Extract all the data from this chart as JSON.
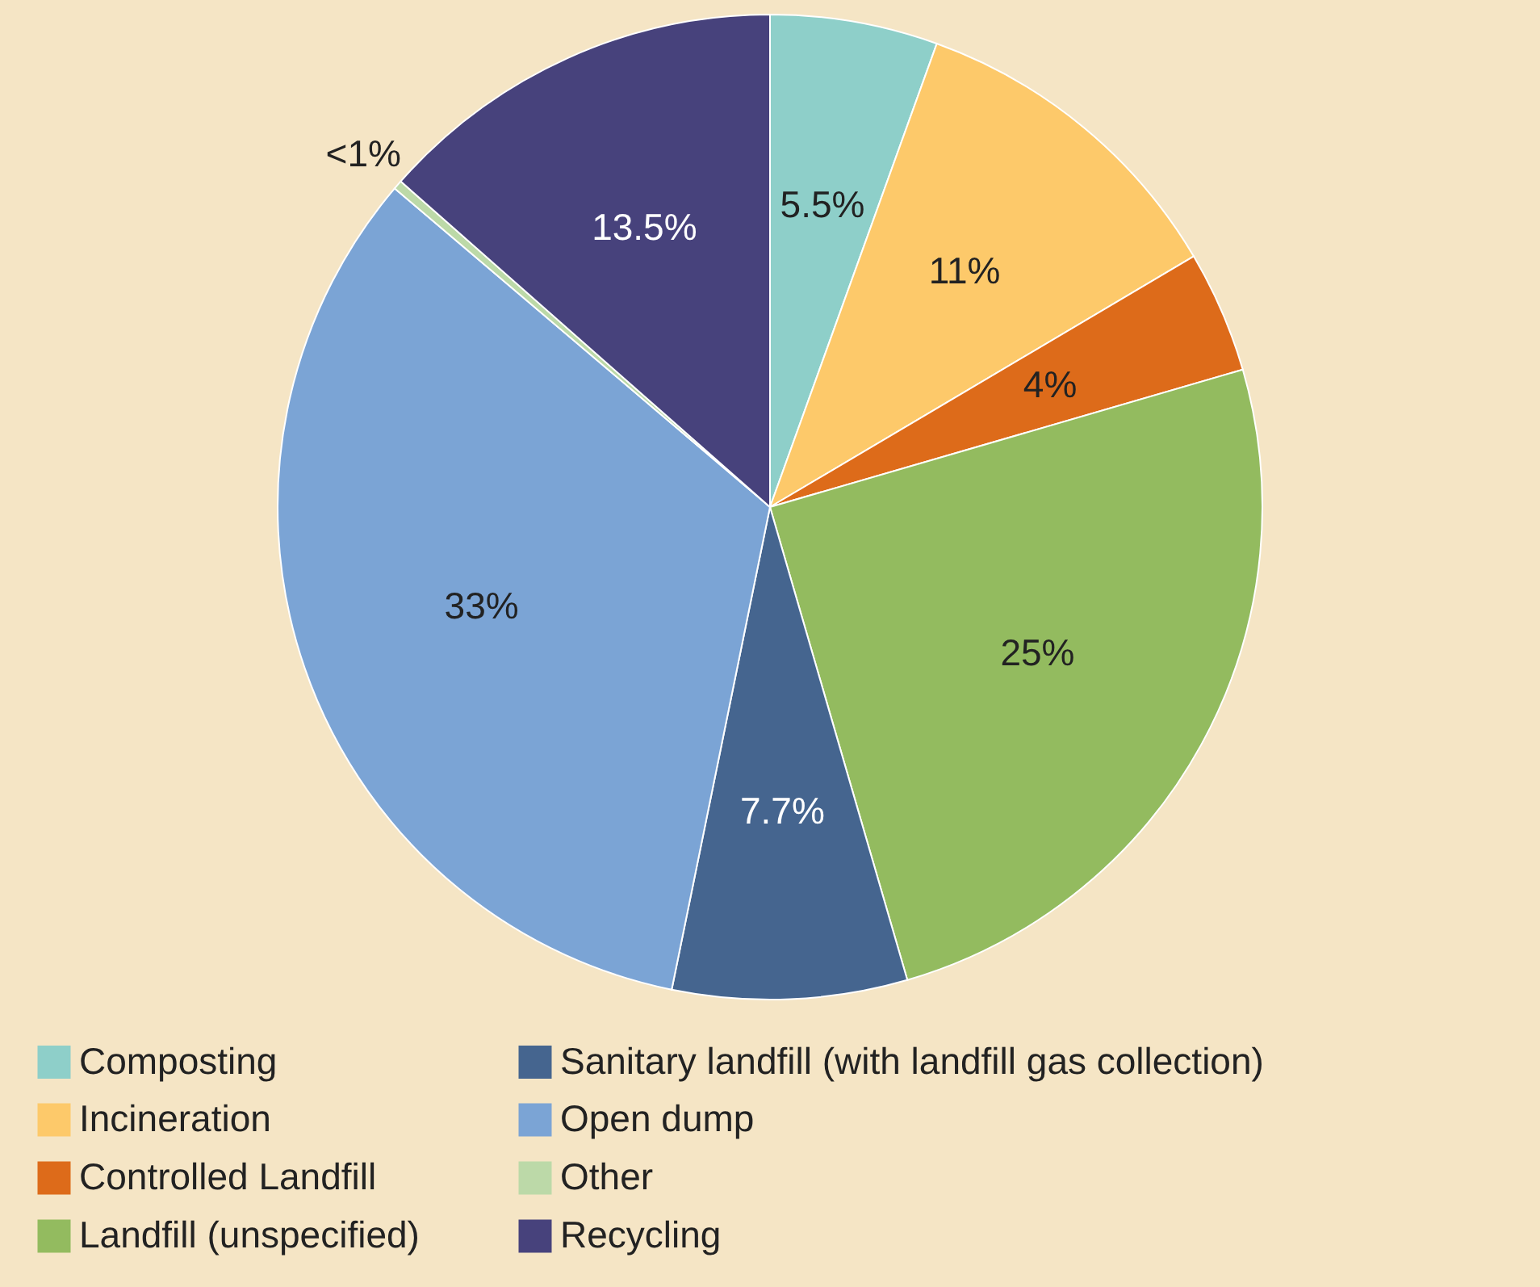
{
  "chart_data": {
    "type": "pie",
    "categories": [
      "Composting",
      "Incineration",
      "Controlled Landfill",
      "Landfill (unspecified)",
      "Sanitary landfill (with landfill gas collection)",
      "Open dump",
      "Other",
      "Recycling"
    ],
    "values": [
      5.5,
      11,
      4,
      25,
      7.7,
      33,
      0.3,
      13.5
    ],
    "value_labels": [
      "5.5%",
      "11%",
      "4%",
      "25%",
      "7.7%",
      "33%",
      "<1%",
      "13.5%"
    ],
    "colors": [
      "#8ecfc9",
      "#fdc96a",
      "#dd6b1a",
      "#93bb5f",
      "#45658f",
      "#7ba4d5",
      "#bcd9a8",
      "#47427c"
    ],
    "legend": "bottom"
  }
}
